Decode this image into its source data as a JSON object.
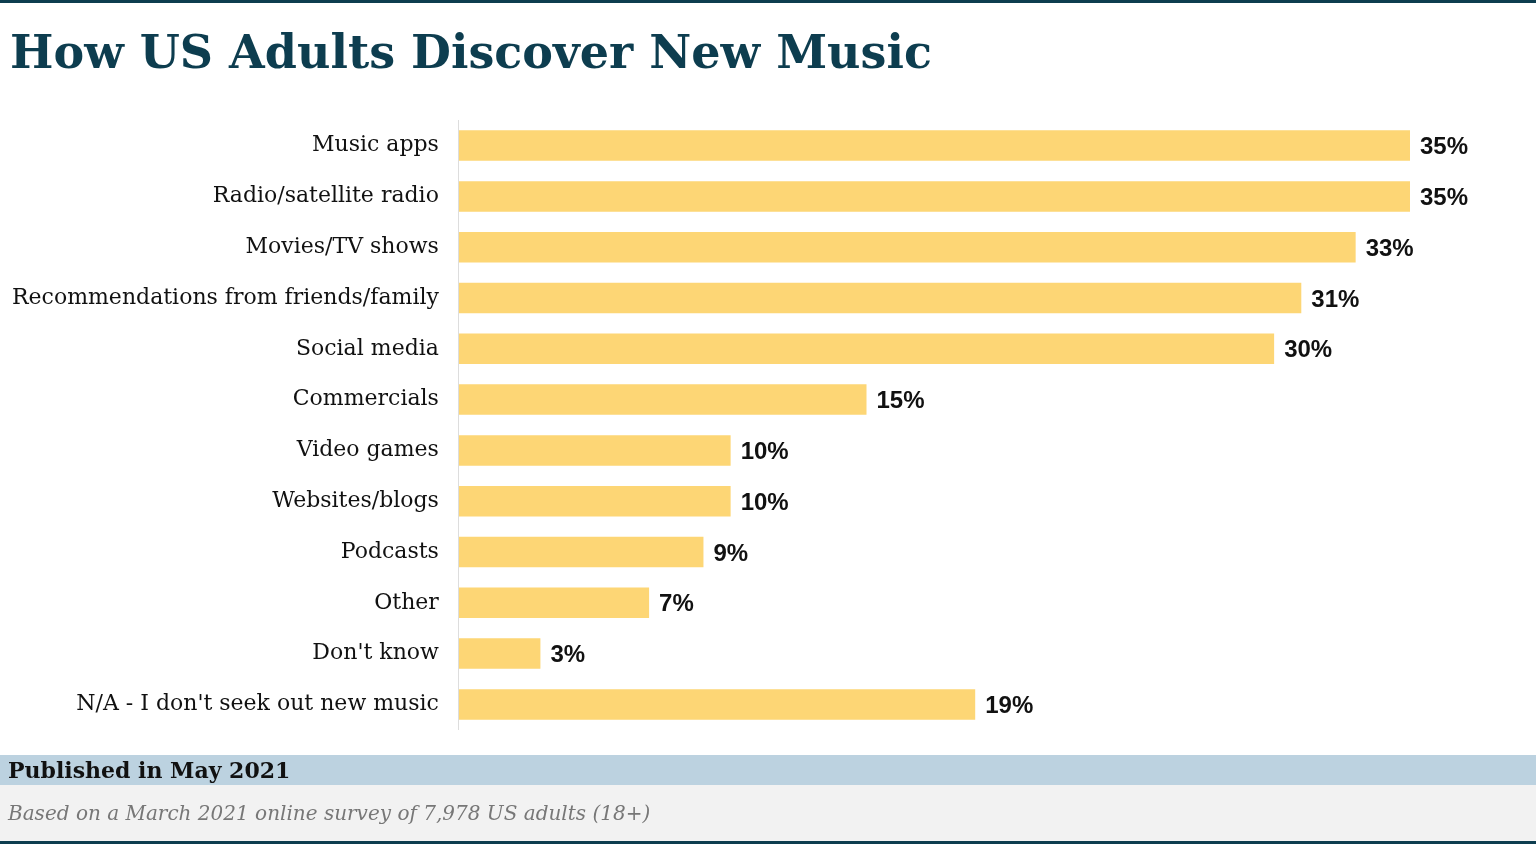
{
  "chart_data": {
    "type": "bar",
    "orientation": "horizontal",
    "title": "How US Adults Discover New Music",
    "categories": [
      "Music apps",
      "Radio/satellite radio",
      "Movies/TV shows",
      "Recommendations from friends/family",
      "Social media",
      "Commercials",
      "Video games",
      "Websites/blogs",
      "Podcasts",
      "Other",
      "Don't know",
      "N/A - I don't seek out new music"
    ],
    "values": [
      35,
      35,
      33,
      31,
      30,
      15,
      10,
      10,
      9,
      7,
      3,
      19
    ],
    "value_labels": [
      "35%",
      "35%",
      "33%",
      "31%",
      "30%",
      "15%",
      "10%",
      "10%",
      "9%",
      "7%",
      "3%",
      "19%"
    ],
    "color": "#fdd675",
    "grid": false,
    "legend": false,
    "annotations": [
      "Published in May 2021",
      "Based on a March 2021 online survey of 7,978 US adults (18+)"
    ]
  }
}
